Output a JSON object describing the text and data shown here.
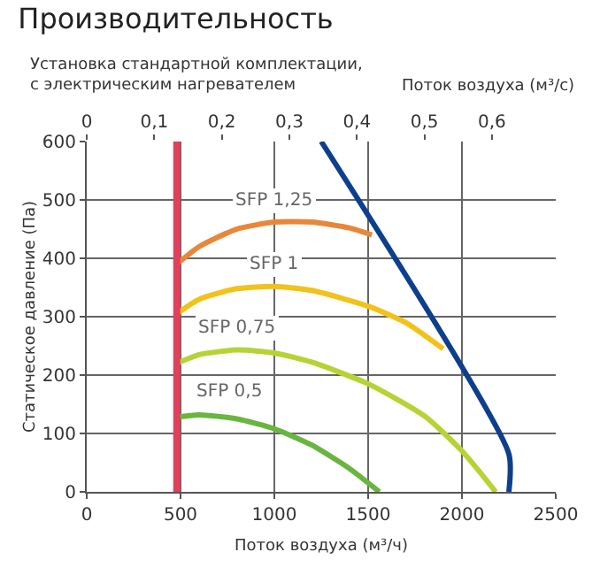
{
  "chart_data": {
    "type": "line",
    "title": "Производительность",
    "subtitle": "Установка стандартной комплектации,\nс электрическим нагревателем",
    "xlabel": "Поток воздуха (м³/ч)",
    "ylabel": "Статическое давление (Па)",
    "x2label": "Поток воздуха (м³/с)",
    "xlim": [
      0,
      2500
    ],
    "xticks": [
      0,
      500,
      1000,
      1500,
      2000,
      2500
    ],
    "ylim": [
      0,
      600
    ],
    "yticks": [
      0,
      100,
      200,
      300,
      400,
      500,
      600
    ],
    "x2lim": [
      0,
      0.6944
    ],
    "x2ticks": [
      0,
      {
        "value": 0.1,
        "label": "0,1"
      },
      {
        "value": 0.2,
        "label": "0,2"
      },
      {
        "value": 0.3,
        "label": "0,3"
      },
      {
        "value": 0.4,
        "label": "0,4"
      },
      {
        "value": 0.5,
        "label": "0,5"
      },
      {
        "value": 0.6,
        "label": "0,6"
      }
    ],
    "grid": true,
    "legend": false,
    "marker": "none",
    "series": [
      {
        "name": "SFP 1,25",
        "color": "#e8873a",
        "x": [
          480,
          600,
          800,
          1000,
          1200,
          1400,
          1520
        ],
        "values": [
          390,
          420,
          450,
          462,
          462,
          452,
          440
        ]
      },
      {
        "name": "SFP 1",
        "color": "#f2c21b",
        "x": [
          480,
          600,
          800,
          1000,
          1200,
          1500,
          1700,
          1900
        ],
        "values": [
          305,
          330,
          348,
          352,
          345,
          318,
          290,
          245
        ]
      },
      {
        "name": "SFP 0,75",
        "color": "#b6d335",
        "x": [
          480,
          600,
          800,
          1000,
          1200,
          1500,
          1800,
          2000,
          2180
        ],
        "values": [
          220,
          235,
          243,
          238,
          222,
          185,
          130,
          70,
          0
        ]
      },
      {
        "name": "SFP 0,5",
        "color": "#6ab53f",
        "x": [
          480,
          600,
          800,
          1000,
          1200,
          1400,
          1560
        ],
        "values": [
          128,
          132,
          125,
          108,
          80,
          40,
          0
        ]
      },
      {
        "color": "#0d3f8c",
        "x": [
          1250,
          2250,
          2250
        ],
        "values": [
          600,
          65,
          0
        ]
      }
    ],
    "ref_lines": [
      {
        "axis": "x",
        "value": 480,
        "color": "#e0405a"
      }
    ]
  }
}
